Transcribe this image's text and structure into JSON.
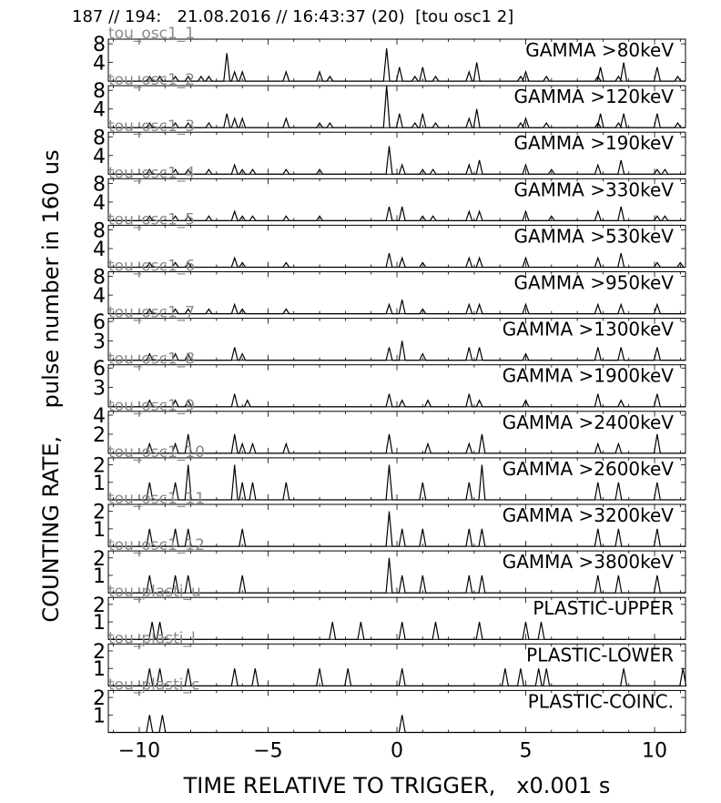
{
  "header": {
    "text": "187 // 194:   21.08.2016 // 16:43:37 (20)  [tou osc1 2]"
  },
  "axes": {
    "ylabel": "COUNTING RATE,    pulse number in 160 us",
    "xlabel": "TIME RELATIVE TO TRIGGER,   x0.001 s",
    "xlim": [
      -11.2,
      11.2
    ],
    "xticks": [
      -10,
      -5,
      0,
      5,
      10
    ],
    "xtick_labels": [
      "−10",
      "−5",
      "0",
      "5",
      "10"
    ]
  },
  "colors": {
    "line": "#000000",
    "channel_label": "#8a8a8a",
    "background": "#ffffff"
  },
  "chart_data": {
    "type": "line",
    "x_unit": "x0.001 s",
    "panels": [
      {
        "title": "GAMMA >80keV",
        "channel": "tou_osc1_1",
        "ylim": [
          0,
          9
        ],
        "yticks": [
          4,
          8
        ],
        "spikes": [
          [
            -9.6,
            1
          ],
          [
            -9.2,
            1
          ],
          [
            -8.6,
            1
          ],
          [
            -8.1,
            1
          ],
          [
            -7.6,
            1
          ],
          [
            -7.3,
            1
          ],
          [
            -6.6,
            6
          ],
          [
            -6.3,
            2
          ],
          [
            -6.0,
            2
          ],
          [
            -4.3,
            2
          ],
          [
            -3.0,
            2
          ],
          [
            -2.6,
            1
          ],
          [
            -0.4,
            7
          ],
          [
            0.1,
            3
          ],
          [
            0.7,
            1
          ],
          [
            1.0,
            3
          ],
          [
            1.5,
            1
          ],
          [
            2.8,
            2
          ],
          [
            3.1,
            4
          ],
          [
            4.8,
            1
          ],
          [
            5.0,
            2
          ],
          [
            5.8,
            1
          ],
          [
            7.8,
            1
          ],
          [
            7.9,
            3
          ],
          [
            8.6,
            1
          ],
          [
            8.8,
            4
          ],
          [
            10.1,
            3
          ],
          [
            10.9,
            1
          ]
        ]
      },
      {
        "title": "GAMMA >120keV",
        "channel": "tou_osc1_2",
        "ylim": [
          0,
          9
        ],
        "yticks": [
          4,
          8
        ],
        "spikes": [
          [
            -9.6,
            1
          ],
          [
            -8.6,
            1
          ],
          [
            -8.1,
            1
          ],
          [
            -7.3,
            1
          ],
          [
            -6.6,
            3
          ],
          [
            -6.3,
            2
          ],
          [
            -6.0,
            2
          ],
          [
            -4.3,
            2
          ],
          [
            -3.0,
            1
          ],
          [
            -2.6,
            1
          ],
          [
            -0.4,
            9
          ],
          [
            0.1,
            3
          ],
          [
            0.7,
            1
          ],
          [
            1.0,
            3
          ],
          [
            1.5,
            1
          ],
          [
            2.8,
            2
          ],
          [
            3.1,
            4
          ],
          [
            4.8,
            1
          ],
          [
            5.0,
            2
          ],
          [
            5.8,
            1
          ],
          [
            7.8,
            1
          ],
          [
            7.9,
            3
          ],
          [
            8.6,
            1
          ],
          [
            8.8,
            3
          ],
          [
            10.1,
            3
          ],
          [
            10.9,
            1
          ]
        ]
      },
      {
        "title": "GAMMA >190keV",
        "channel": "tou_osc1_3",
        "ylim": [
          0,
          9
        ],
        "yticks": [
          4,
          8
        ],
        "spikes": [
          [
            -9.6,
            1
          ],
          [
            -8.6,
            1
          ],
          [
            -8.1,
            1
          ],
          [
            -7.3,
            1
          ],
          [
            -6.3,
            2
          ],
          [
            -6.0,
            1
          ],
          [
            -5.6,
            1
          ],
          [
            -4.3,
            1
          ],
          [
            -3.0,
            1
          ],
          [
            -0.3,
            6
          ],
          [
            0.2,
            2
          ],
          [
            1.0,
            1
          ],
          [
            1.4,
            1
          ],
          [
            2.8,
            2
          ],
          [
            3.2,
            3
          ],
          [
            5.0,
            2
          ],
          [
            6.0,
            1
          ],
          [
            7.8,
            2
          ],
          [
            8.7,
            3
          ],
          [
            10.1,
            1
          ],
          [
            10.4,
            1
          ]
        ]
      },
      {
        "title": "GAMMA >330keV",
        "channel": "tou_osc1_4",
        "ylim": [
          0,
          9
        ],
        "yticks": [
          4,
          8
        ],
        "spikes": [
          [
            -9.6,
            1
          ],
          [
            -8.6,
            1
          ],
          [
            -8.1,
            1
          ],
          [
            -7.3,
            1
          ],
          [
            -6.3,
            2
          ],
          [
            -6.0,
            1
          ],
          [
            -5.6,
            1
          ],
          [
            -4.3,
            1
          ],
          [
            -3.0,
            1
          ],
          [
            -0.3,
            3
          ],
          [
            0.2,
            3
          ],
          [
            1.0,
            1
          ],
          [
            1.4,
            1
          ],
          [
            2.8,
            2
          ],
          [
            3.2,
            2
          ],
          [
            5.0,
            2
          ],
          [
            6.0,
            1
          ],
          [
            7.8,
            2
          ],
          [
            8.7,
            3
          ],
          [
            10.1,
            1
          ],
          [
            10.4,
            1
          ]
        ]
      },
      {
        "title": "GAMMA >530keV",
        "channel": "tou_osc1_5",
        "ylim": [
          0,
          9
        ],
        "yticks": [
          4,
          8
        ],
        "spikes": [
          [
            -9.6,
            1
          ],
          [
            -8.6,
            1
          ],
          [
            -8.1,
            1
          ],
          [
            -6.3,
            2
          ],
          [
            -6.0,
            1
          ],
          [
            -4.3,
            1
          ],
          [
            -0.3,
            3
          ],
          [
            0.2,
            2
          ],
          [
            1.0,
            1
          ],
          [
            2.8,
            2
          ],
          [
            3.2,
            2
          ],
          [
            5.0,
            2
          ],
          [
            7.8,
            2
          ],
          [
            8.7,
            3
          ],
          [
            10.1,
            1
          ],
          [
            11.0,
            1
          ]
        ]
      },
      {
        "title": "GAMMA >950keV",
        "channel": "tou_osc1_6",
        "ylim": [
          0,
          9
        ],
        "yticks": [
          4,
          8
        ],
        "spikes": [
          [
            -9.6,
            1
          ],
          [
            -8.6,
            1
          ],
          [
            -8.1,
            1
          ],
          [
            -7.3,
            1
          ],
          [
            -6.3,
            2
          ],
          [
            -6.0,
            1
          ],
          [
            -4.3,
            1
          ],
          [
            -0.3,
            2
          ],
          [
            0.2,
            3
          ],
          [
            1.0,
            1
          ],
          [
            2.8,
            2
          ],
          [
            3.2,
            2
          ],
          [
            5.0,
            2
          ],
          [
            7.8,
            2
          ],
          [
            8.7,
            2
          ],
          [
            10.1,
            2
          ]
        ]
      },
      {
        "title": "GAMMA >1300keV",
        "channel": "tou_osc1_7",
        "ylim": [
          0,
          6.5
        ],
        "yticks": [
          3,
          6
        ],
        "spikes": [
          [
            -9.6,
            1
          ],
          [
            -8.6,
            1
          ],
          [
            -8.1,
            1
          ],
          [
            -6.3,
            2
          ],
          [
            -6.0,
            1
          ],
          [
            -0.3,
            2
          ],
          [
            0.2,
            3
          ],
          [
            1.0,
            1
          ],
          [
            2.8,
            2
          ],
          [
            3.2,
            2
          ],
          [
            5.0,
            1
          ],
          [
            7.8,
            2
          ],
          [
            8.7,
            2
          ],
          [
            10.1,
            2
          ]
        ]
      },
      {
        "title": "GAMMA >1900keV",
        "channel": "tou_osc1_8",
        "ylim": [
          0,
          6.5
        ],
        "yticks": [
          3,
          6
        ],
        "spikes": [
          [
            -9.6,
            1
          ],
          [
            -8.6,
            1
          ],
          [
            -8.1,
            1
          ],
          [
            -6.3,
            2
          ],
          [
            -5.8,
            1
          ],
          [
            -0.3,
            2
          ],
          [
            0.2,
            1
          ],
          [
            1.2,
            1
          ],
          [
            2.8,
            2
          ],
          [
            3.2,
            1
          ],
          [
            5.0,
            1
          ],
          [
            7.8,
            2
          ],
          [
            8.7,
            1
          ],
          [
            10.1,
            2
          ]
        ]
      },
      {
        "title": "GAMMA >2400keV",
        "channel": "tou_osc1_9",
        "ylim": [
          0,
          4.4
        ],
        "yticks": [
          2,
          4
        ],
        "spikes": [
          [
            -9.6,
            1
          ],
          [
            -8.6,
            1
          ],
          [
            -8.1,
            2
          ],
          [
            -6.3,
            2
          ],
          [
            -6.0,
            1
          ],
          [
            -5.6,
            1
          ],
          [
            -4.3,
            1
          ],
          [
            -0.3,
            2
          ],
          [
            1.2,
            1
          ],
          [
            2.8,
            1
          ],
          [
            3.3,
            2
          ],
          [
            7.8,
            1
          ],
          [
            8.6,
            1
          ],
          [
            10.1,
            2
          ]
        ]
      },
      {
        "title": "GAMMA >2600keV",
        "channel": "tou_osc1_10",
        "ylim": [
          0,
          2.4
        ],
        "yticks": [
          1,
          2
        ],
        "spikes": [
          [
            -9.6,
            1
          ],
          [
            -8.6,
            1
          ],
          [
            -8.1,
            2
          ],
          [
            -6.3,
            2
          ],
          [
            -6.0,
            1
          ],
          [
            -5.6,
            1
          ],
          [
            -4.3,
            1
          ],
          [
            -0.3,
            2
          ],
          [
            1.0,
            1
          ],
          [
            2.8,
            1
          ],
          [
            3.3,
            2
          ],
          [
            7.8,
            1
          ],
          [
            8.6,
            1
          ],
          [
            10.1,
            1
          ]
        ]
      },
      {
        "title": "GAMMA >3200keV",
        "channel": "tou_osc1_11",
        "ylim": [
          0,
          2.4
        ],
        "yticks": [
          1,
          2
        ],
        "spikes": [
          [
            -9.6,
            1
          ],
          [
            -8.6,
            1
          ],
          [
            -8.1,
            1
          ],
          [
            -6.0,
            1
          ],
          [
            -0.3,
            2
          ],
          [
            0.2,
            1
          ],
          [
            1.0,
            1
          ],
          [
            2.8,
            1
          ],
          [
            3.3,
            1
          ],
          [
            7.8,
            1
          ],
          [
            8.6,
            1
          ],
          [
            10.1,
            1
          ]
        ]
      },
      {
        "title": "GAMMA >3800keV",
        "channel": "tou_osc1_12",
        "ylim": [
          0,
          2.4
        ],
        "yticks": [
          1,
          2
        ],
        "spikes": [
          [
            -9.6,
            1
          ],
          [
            -8.6,
            1
          ],
          [
            -8.1,
            1
          ],
          [
            -6.0,
            1
          ],
          [
            -0.3,
            2
          ],
          [
            0.2,
            1
          ],
          [
            1.0,
            1
          ],
          [
            2.8,
            1
          ],
          [
            3.3,
            1
          ],
          [
            7.8,
            1
          ],
          [
            8.6,
            1
          ],
          [
            10.1,
            1
          ]
        ]
      },
      {
        "title": "PLASTIC-UPPER",
        "channel": "tou_plasti_u",
        "ylim": [
          0,
          2.4
        ],
        "yticks": [
          1,
          2
        ],
        "spikes": [
          [
            -9.5,
            1
          ],
          [
            -9.2,
            1
          ],
          [
            -2.5,
            1
          ],
          [
            -1.4,
            1
          ],
          [
            0.2,
            1
          ],
          [
            1.5,
            1
          ],
          [
            3.2,
            1
          ],
          [
            5.0,
            1
          ],
          [
            5.6,
            1
          ]
        ]
      },
      {
        "title": "PLASTIC-LOWER",
        "channel": "tou_plasti_l",
        "ylim": [
          0,
          2.4
        ],
        "yticks": [
          1,
          2
        ],
        "spikes": [
          [
            -9.6,
            1
          ],
          [
            -9.2,
            1
          ],
          [
            -8.1,
            1
          ],
          [
            -6.3,
            1
          ],
          [
            -5.5,
            1
          ],
          [
            -3.0,
            1
          ],
          [
            -1.9,
            1
          ],
          [
            0.2,
            1
          ],
          [
            4.2,
            1
          ],
          [
            4.8,
            1
          ],
          [
            5.5,
            1
          ],
          [
            5.8,
            1
          ],
          [
            8.8,
            1
          ],
          [
            11.1,
            1
          ]
        ]
      },
      {
        "title": "PLASTIC-COINC.",
        "channel": "tou_plasti_c",
        "ylim": [
          0,
          2.4
        ],
        "yticks": [
          1,
          2
        ],
        "spikes": [
          [
            -9.6,
            1
          ],
          [
            -9.1,
            1
          ],
          [
            0.2,
            1
          ]
        ]
      }
    ]
  }
}
